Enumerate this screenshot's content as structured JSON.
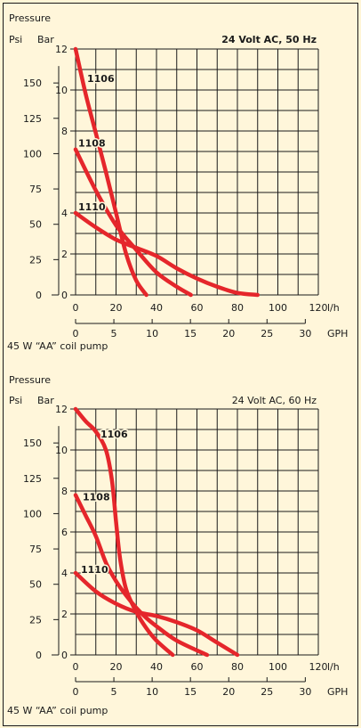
{
  "colors": {
    "background": "#fff6da",
    "curve": "#e5262b",
    "grid": "#1a1a1a"
  },
  "chart_data": [
    {
      "type": "line",
      "title": "24 Volt AC, 50 Hz",
      "footnote": "45 W “AA” coil pump",
      "y_axis_title": "Pressure",
      "y_unit_left": "Psi",
      "y_unit_right": "Bar",
      "x_unit_top": "l/h",
      "x_unit_bottom": "GPH",
      "psi_ticks": [
        "0",
        "25",
        "50",
        "75",
        "100",
        "125",
        "150"
      ],
      "psi_values": [
        0,
        25,
        50,
        75,
        100,
        125,
        150
      ],
      "bar_ticks": [
        "0",
        "2",
        "4",
        "8",
        "10",
        "12"
      ],
      "bar_values": [
        0,
        2,
        4,
        8,
        10,
        12
      ],
      "lh_ticks": [
        "0",
        "20",
        "40",
        "60",
        "80",
        "100",
        "120"
      ],
      "lh_values": [
        0,
        20,
        40,
        60,
        80,
        100,
        120
      ],
      "gph_ticks": [
        "0",
        "5",
        "10",
        "15",
        "20",
        "25",
        "30"
      ],
      "gph_values": [
        0,
        5,
        10,
        15,
        20,
        25,
        30
      ],
      "xlim": [
        0,
        120
      ],
      "ylim": [
        0,
        12
      ],
      "grid": true,
      "series": [
        {
          "name": "1106",
          "x": [
            0,
            5,
            10,
            15,
            20,
            25,
            30,
            35
          ],
          "y": [
            12,
            9.8,
            7.9,
            6,
            4,
            2,
            0.7,
            0
          ]
        },
        {
          "name": "1108",
          "x": [
            0,
            10,
            20,
            30,
            40,
            50,
            57
          ],
          "y": [
            7.1,
            5.1,
            3.4,
            2.2,
            1.1,
            0.4,
            0
          ]
        },
        {
          "name": "1110",
          "x": [
            0,
            10,
            20,
            30,
            40,
            50,
            60,
            70,
            80,
            90
          ],
          "y": [
            4,
            3.3,
            2.7,
            2.3,
            1.9,
            1.3,
            0.8,
            0.4,
            0.1,
            0
          ]
        }
      ]
    },
    {
      "type": "line",
      "title": "24 Volt AC, 60 Hz",
      "footnote": "45 W “AA” coil pump",
      "y_axis_title": "Pressure",
      "y_unit_left": "Psi",
      "y_unit_right": "Bar",
      "x_unit_top": "l/h",
      "x_unit_bottom": "GPH",
      "psi_ticks": [
        "0",
        "25",
        "50",
        "75",
        "100",
        "125",
        "150"
      ],
      "psi_values": [
        0,
        25,
        50,
        75,
        100,
        125,
        150
      ],
      "bar_ticks": [
        "0",
        "2",
        "4",
        "6",
        "8",
        "10",
        "12"
      ],
      "bar_values": [
        0,
        2,
        4,
        6,
        8,
        10,
        12
      ],
      "lh_ticks": [
        "0",
        "20",
        "40",
        "60",
        "80",
        "100",
        "120"
      ],
      "lh_values": [
        0,
        20,
        40,
        60,
        80,
        100,
        120
      ],
      "gph_ticks": [
        "0",
        "5",
        "10",
        "15",
        "20",
        "25",
        "30"
      ],
      "gph_values": [
        0,
        5,
        10,
        15,
        20,
        25,
        30
      ],
      "xlim": [
        0,
        120
      ],
      "ylim": [
        0,
        12
      ],
      "grid": true,
      "series": [
        {
          "name": "1106",
          "x": [
            0,
            5,
            10,
            15,
            18,
            20,
            22,
            25,
            30,
            35,
            40,
            48
          ],
          "y": [
            12,
            11.4,
            10.9,
            10,
            8.5,
            6.5,
            4.7,
            3.2,
            2.1,
            1.3,
            0.7,
            0
          ]
        },
        {
          "name": "1108",
          "x": [
            0,
            5,
            10,
            15,
            20,
            25,
            30,
            35,
            40,
            50,
            65
          ],
          "y": [
            7.8,
            6.8,
            5.8,
            4.5,
            3.6,
            2.9,
            2.3,
            1.8,
            1.4,
            0.7,
            0
          ]
        },
        {
          "name": "1110",
          "x": [
            0,
            10,
            20,
            30,
            40,
            50,
            60,
            70,
            80
          ],
          "y": [
            4,
            3.1,
            2.5,
            2.1,
            1.9,
            1.6,
            1.2,
            0.6,
            0
          ]
        }
      ]
    }
  ]
}
